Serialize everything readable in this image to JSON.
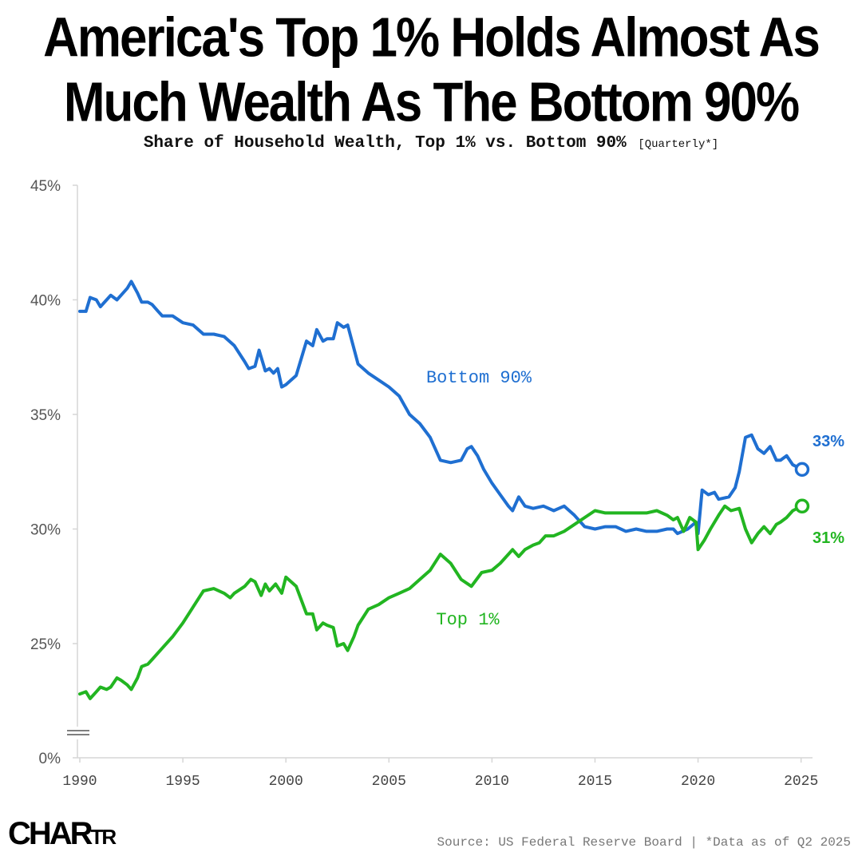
{
  "title_line1": "America's Top 1% Holds Almost As",
  "title_line2": "Much Wealth As The Bottom 90%",
  "subtitle": "Share of Household Wealth, Top 1% vs. Bottom 90%",
  "subtitle_note": "[Quarterly*]",
  "logo": {
    "big": "CHAR",
    "small": "TR"
  },
  "source": "Source: US Federal Reserve Board | *Data as of Q2 2025",
  "chart_data": {
    "type": "line",
    "xlim": [
      1990,
      2025.4
    ],
    "ylim": [
      0,
      45
    ],
    "y_axis_break": true,
    "yticks": [
      0,
      25,
      30,
      35,
      40,
      45
    ],
    "ytick_labels": [
      "0%",
      "25%",
      "30%",
      "35%",
      "40%",
      "45%"
    ],
    "xticks": [
      1990,
      1995,
      2000,
      2005,
      2010,
      2015,
      2020,
      2025
    ],
    "xtick_labels": [
      "1990",
      "1995",
      "2000",
      "2005",
      "2010",
      "2015",
      "2020",
      "2025"
    ],
    "grid": false,
    "series": [
      {
        "name": "Bottom 90%",
        "color": "#1f6fd1",
        "end_label": "33%",
        "x": [
          1990,
          1990.3,
          1990.5,
          1990.8,
          1991,
          1991.3,
          1991.5,
          1991.8,
          1992,
          1992.3,
          1992.5,
          1992.8,
          1993,
          1993.3,
          1993.5,
          1993.8,
          1994,
          1994.5,
          1995,
          1995.5,
          1996,
          1996.5,
          1997,
          1997.5,
          1998,
          1998.2,
          1998.5,
          1998.7,
          1999,
          1999.2,
          1999.4,
          1999.6,
          1999.8,
          2000,
          2000.5,
          2001,
          2001.3,
          2001.5,
          2001.8,
          2002,
          2002.3,
          2002.5,
          2002.8,
          2003,
          2003.5,
          2004,
          2004.5,
          2005,
          2005.5,
          2006,
          2006.5,
          2007,
          2007.5,
          2008,
          2008.5,
          2008.8,
          2009,
          2009.3,
          2009.6,
          2010,
          2010.4,
          2010.8,
          2011,
          2011.3,
          2011.6,
          2012,
          2012.5,
          2013,
          2013.5,
          2014,
          2014.5,
          2015,
          2015.5,
          2016,
          2016.5,
          2017,
          2017.5,
          2018,
          2018.5,
          2018.8,
          2019,
          2019.5,
          2019.9,
          2020,
          2020.2,
          2020.5,
          2020.8,
          2021,
          2021.5,
          2021.8,
          2022,
          2022.3,
          2022.6,
          2022.9,
          2023.2,
          2023.5,
          2023.8,
          2024,
          2024.3,
          2024.6,
          2025.05
        ],
        "values": [
          39.5,
          39.5,
          40.1,
          40.0,
          39.7,
          40.0,
          40.2,
          40.0,
          40.2,
          40.5,
          40.8,
          40.3,
          39.9,
          39.9,
          39.8,
          39.5,
          39.3,
          39.3,
          39.0,
          38.9,
          38.5,
          38.5,
          38.4,
          38.0,
          37.3,
          37.0,
          37.1,
          37.8,
          36.9,
          37.0,
          36.8,
          37.0,
          36.2,
          36.3,
          36.7,
          38.2,
          38.0,
          38.7,
          38.2,
          38.3,
          38.3,
          39.0,
          38.8,
          38.9,
          37.2,
          36.8,
          36.5,
          36.2,
          35.8,
          35.0,
          34.6,
          34.0,
          33.0,
          32.9,
          33.0,
          33.5,
          33.6,
          33.2,
          32.6,
          32.0,
          31.5,
          31.0,
          30.8,
          31.4,
          31.0,
          30.9,
          31.0,
          30.8,
          31.0,
          30.6,
          30.1,
          30.0,
          30.1,
          30.1,
          29.9,
          30.0,
          29.9,
          29.9,
          30.0,
          30.0,
          29.8,
          30.0,
          30.3,
          29.8,
          31.7,
          31.5,
          31.6,
          31.3,
          31.4,
          31.8,
          32.5,
          34.0,
          34.1,
          33.5,
          33.3,
          33.6,
          33.0,
          33.0,
          33.2,
          32.8,
          32.6
        ]
      },
      {
        "name": "Top 1%",
        "color": "#22b521",
        "end_label": "31%",
        "x": [
          1990,
          1990.3,
          1990.5,
          1990.8,
          1991,
          1991.3,
          1991.5,
          1991.8,
          1992,
          1992.3,
          1992.5,
          1992.8,
          1993,
          1993.3,
          1993.5,
          1994,
          1994.5,
          1995,
          1995.5,
          1996,
          1996.5,
          1997,
          1997.3,
          1997.5,
          1998,
          1998.3,
          1998.5,
          1998.8,
          1999,
          1999.2,
          1999.5,
          1999.8,
          2000,
          2000.5,
          2001,
          2001.3,
          2001.5,
          2001.8,
          2002,
          2002.3,
          2002.5,
          2002.8,
          2003,
          2003.3,
          2003.5,
          2004,
          2004.5,
          2005,
          2005.5,
          2006,
          2006.5,
          2007,
          2007.5,
          2008,
          2008.5,
          2009,
          2009.5,
          2010,
          2010.4,
          2010.8,
          2011,
          2011.3,
          2011.6,
          2012,
          2012.3,
          2012.6,
          2013,
          2013.5,
          2014,
          2014.5,
          2015,
          2015.5,
          2016,
          2016.5,
          2017,
          2017.5,
          2018,
          2018.5,
          2018.8,
          2019,
          2019.3,
          2019.6,
          2019.9,
          2020,
          2020.3,
          2020.6,
          2021,
          2021.3,
          2021.6,
          2022,
          2022.3,
          2022.6,
          2022.9,
          2023.2,
          2023.5,
          2023.8,
          2024,
          2024.3,
          2024.6,
          2025.05
        ],
        "values": [
          22.8,
          22.9,
          22.6,
          22.9,
          23.1,
          23.0,
          23.1,
          23.5,
          23.4,
          23.2,
          23.0,
          23.5,
          24.0,
          24.1,
          24.3,
          24.8,
          25.3,
          25.9,
          26.6,
          27.3,
          27.4,
          27.2,
          27.0,
          27.2,
          27.5,
          27.8,
          27.7,
          27.1,
          27.6,
          27.3,
          27.6,
          27.2,
          27.9,
          27.5,
          26.3,
          26.3,
          25.6,
          25.9,
          25.8,
          25.7,
          24.9,
          25.0,
          24.7,
          25.3,
          25.8,
          26.5,
          26.7,
          27.0,
          27.2,
          27.4,
          27.8,
          28.2,
          28.9,
          28.5,
          27.8,
          27.5,
          28.1,
          28.2,
          28.5,
          28.9,
          29.1,
          28.8,
          29.1,
          29.3,
          29.4,
          29.7,
          29.7,
          29.9,
          30.2,
          30.5,
          30.8,
          30.7,
          30.7,
          30.7,
          30.7,
          30.7,
          30.8,
          30.6,
          30.4,
          30.5,
          29.9,
          30.5,
          30.3,
          29.1,
          29.5,
          30.0,
          30.6,
          31.0,
          30.8,
          30.9,
          30.0,
          29.4,
          29.8,
          30.1,
          29.8,
          30.2,
          30.3,
          30.5,
          30.8,
          31.0
        ]
      }
    ]
  }
}
